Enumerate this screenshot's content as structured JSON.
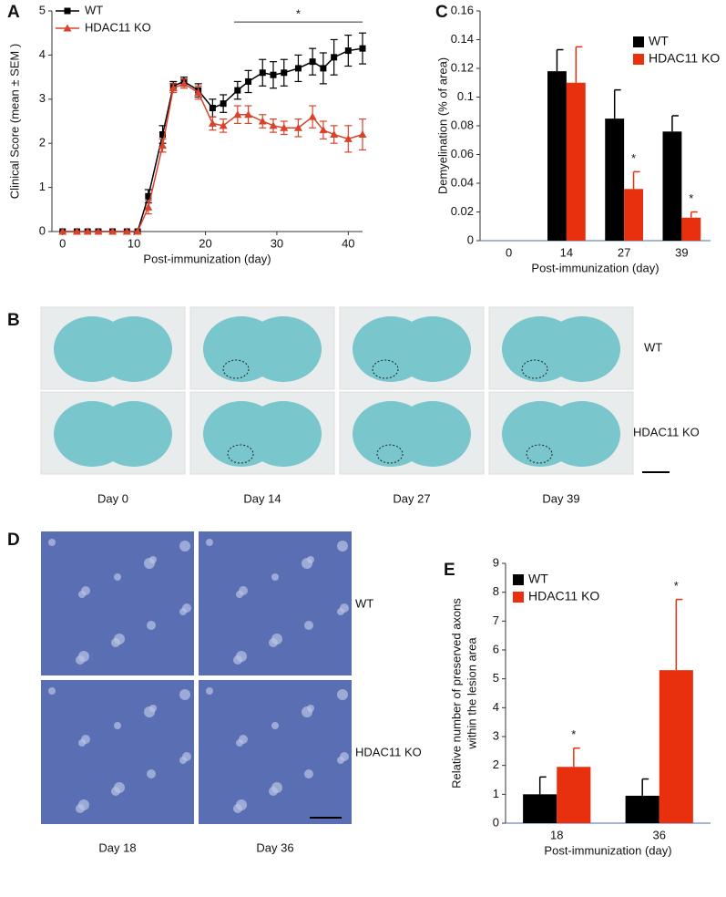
{
  "chart_data": [
    {
      "panel": "A",
      "type": "line",
      "xlabel": "Post-immunization (day)",
      "ylabel": "Clinical Score (mean ± SEM )",
      "x": [
        0,
        2,
        3.5,
        5,
        7,
        9,
        10.5,
        12,
        14,
        15.5,
        17,
        19,
        21,
        22.5,
        24.5,
        26,
        28,
        29.5,
        31,
        33,
        35,
        36.5,
        38,
        40,
        42
      ],
      "xlim": [
        -1.5,
        42
      ],
      "xticks": [
        0,
        10,
        20,
        30,
        40
      ],
      "ylim": [
        0,
        5
      ],
      "yticks": [
        0,
        1,
        2,
        3,
        4,
        5
      ],
      "legend": "upper left",
      "series": [
        {
          "name": "WT",
          "color": "#000000",
          "marker": "square",
          "values": [
            0,
            0,
            0,
            0,
            0,
            0,
            0,
            0.8,
            2.2,
            3.3,
            3.4,
            3.2,
            2.8,
            2.9,
            3.2,
            3.4,
            3.6,
            3.55,
            3.6,
            3.7,
            3.85,
            3.7,
            3.95,
            4.1,
            4.15
          ],
          "errors": [
            0,
            0,
            0,
            0,
            0,
            0,
            0,
            0.15,
            0.2,
            0.1,
            0.1,
            0.15,
            0.2,
            0.2,
            0.2,
            0.25,
            0.3,
            0.3,
            0.3,
            0.3,
            0.3,
            0.35,
            0.4,
            0.35,
            0.35
          ]
        },
        {
          "name": "HDAC11 KO",
          "color": "#d9432b",
          "marker": "triangle",
          "values": [
            0,
            0,
            0,
            0,
            0,
            0,
            0,
            0.55,
            1.95,
            3.25,
            3.35,
            3.15,
            2.45,
            2.4,
            2.65,
            2.65,
            2.5,
            2.4,
            2.35,
            2.35,
            2.6,
            2.3,
            2.2,
            2.1,
            2.2
          ],
          "errors": [
            0,
            0,
            0,
            0,
            0,
            0,
            0,
            0.15,
            0.15,
            0.1,
            0.1,
            0.15,
            0.15,
            0.15,
            0.2,
            0.2,
            0.15,
            0.15,
            0.15,
            0.2,
            0.25,
            0.2,
            0.2,
            0.3,
            0.35
          ]
        }
      ],
      "significance": {
        "text": "*",
        "x": [
          24,
          42
        ],
        "y": 4.75
      }
    },
    {
      "panel": "C",
      "type": "bar",
      "xlabel": "Post-immunization (day)",
      "ylabel": "Demyelination (% of area)",
      "categories": [
        "0",
        "14",
        "27",
        "39"
      ],
      "ylim": [
        0,
        0.16
      ],
      "yticks": [
        0,
        0.02,
        0.04,
        0.06,
        0.08,
        0.1,
        0.12,
        0.14,
        0.16
      ],
      "legend": "upper right",
      "series": [
        {
          "name": "WT",
          "color": "#000000",
          "values": [
            0,
            0.118,
            0.085,
            0.076
          ],
          "errors": [
            0,
            0.015,
            0.02,
            0.011
          ]
        },
        {
          "name": "HDAC11 KO",
          "color": "#e8300e",
          "values": [
            0,
            0.11,
            0.036,
            0.016
          ],
          "errors": [
            0,
            0.025,
            0.012,
            0.004
          ]
        }
      ],
      "annotations": [
        {
          "text": "*",
          "category": "27"
        },
        {
          "text": "*",
          "category": "39"
        }
      ]
    },
    {
      "panel": "E",
      "type": "bar",
      "xlabel": "Post-immunization (day)",
      "ylabel": [
        "Relative number of  preserved axons",
        "within the lesion area"
      ],
      "categories": [
        "18",
        "36"
      ],
      "ylim": [
        0,
        9
      ],
      "yticks": [
        0,
        1,
        2,
        3,
        4,
        5,
        6,
        7,
        8,
        9
      ],
      "legend": "upper left",
      "series": [
        {
          "name": "WT",
          "color": "#000000",
          "values": [
            1.0,
            0.95
          ],
          "errors": [
            0.6,
            0.58
          ]
        },
        {
          "name": "HDAC11 KO",
          "color": "#e8300e",
          "values": [
            1.95,
            5.3
          ],
          "errors": [
            0.65,
            2.45
          ]
        }
      ],
      "annotations": [
        {
          "text": "*",
          "category": "18"
        },
        {
          "text": "*",
          "category": "36"
        }
      ]
    }
  ],
  "panel_b": {
    "label": "B",
    "rows": [
      "WT",
      "HDAC11 KO"
    ],
    "columns": [
      "Day 0",
      "Day  14",
      "Day  27",
      "Day  39"
    ]
  },
  "panel_d": {
    "label": "D",
    "rows": [
      "WT",
      "HDAC11 KO"
    ],
    "columns": [
      "Day 18",
      "Day 36"
    ]
  }
}
